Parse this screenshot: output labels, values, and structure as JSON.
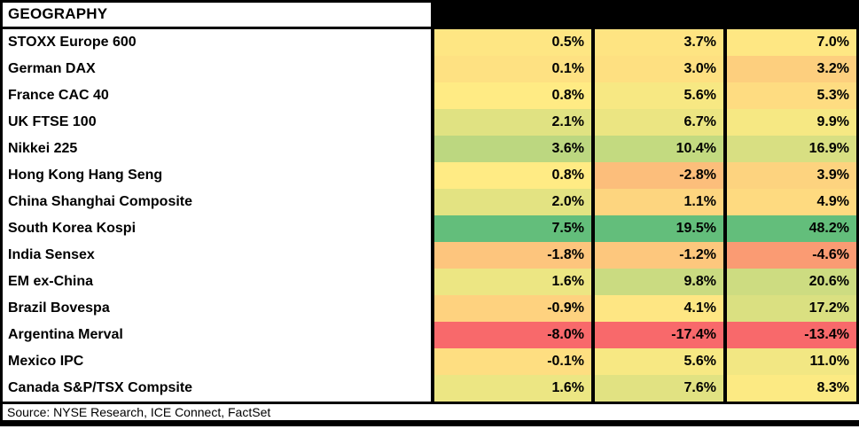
{
  "table": {
    "title": "GEOGRAPHY",
    "rows": [
      {
        "label": "STOXX Europe 600",
        "values": [
          "0.5%",
          "3.7%",
          "7.0%"
        ],
        "colors": [
          "#FEE683",
          "#FEE482",
          "#FEE783"
        ]
      },
      {
        "label": "German DAX",
        "values": [
          "0.1%",
          "3.0%",
          "3.2%"
        ],
        "colors": [
          "#FEE182",
          "#FEE081",
          "#FDCF7E"
        ]
      },
      {
        "label": "France CAC 40",
        "values": [
          "0.8%",
          "5.6%",
          "5.3%"
        ],
        "colors": [
          "#FFEB84",
          "#F7E883",
          "#FEDC81"
        ]
      },
      {
        "label": "UK FTSE 100",
        "values": [
          "2.1%",
          "6.7%",
          "9.9%"
        ],
        "colors": [
          "#E0E282",
          "#EBE582",
          "#F6E883"
        ]
      },
      {
        "label": "Nikkei 225",
        "values": [
          "3.6%",
          "10.4%",
          "16.9%"
        ],
        "colors": [
          "#BCD780",
          "#C3DA80",
          "#D8DF82"
        ]
      },
      {
        "label": "Hong Kong Hang Seng",
        "values": [
          "0.8%",
          "-2.8%",
          "3.9%"
        ],
        "colors": [
          "#FFEB84",
          "#FCBE7B",
          "#FDD37F"
        ]
      },
      {
        "label": "China Shanghai Composite",
        "values": [
          "2.0%",
          "1.1%",
          "4.9%"
        ],
        "colors": [
          "#E3E382",
          "#FDD57F",
          "#FEDA80"
        ]
      },
      {
        "label": "South Korea Kospi",
        "values": [
          "7.5%",
          "19.5%",
          "48.2%"
        ],
        "colors": [
          "#63BE7B",
          "#63BE7B",
          "#63BE7B"
        ]
      },
      {
        "label": "India Sensex",
        "values": [
          "-1.8%",
          "-1.2%",
          "-4.6%"
        ],
        "colors": [
          "#FDC57D",
          "#FDC77D",
          "#FA9B73"
        ]
      },
      {
        "label": "EM ex-China",
        "values": [
          "1.6%",
          "9.8%",
          "20.6%"
        ],
        "colors": [
          "#ECE683",
          "#CADB81",
          "#CDDC81"
        ]
      },
      {
        "label": "Brazil Bovespa",
        "values": [
          "-0.9%",
          "4.1%",
          "17.2%"
        ],
        "colors": [
          "#FED27F",
          "#FEE683",
          "#DAE081"
        ]
      },
      {
        "label": "Argentina Merval",
        "values": [
          "-8.0%",
          "-17.4%",
          "-13.4%"
        ],
        "colors": [
          "#F8696B",
          "#F8696B",
          "#F8696B"
        ]
      },
      {
        "label": "Mexico IPC",
        "values": [
          "-0.1%",
          "5.6%",
          "11.0%"
        ],
        "colors": [
          "#FEDE81",
          "#F7E883",
          "#F2E783"
        ]
      },
      {
        "label": "Canada S&P/TSX Compsite",
        "values": [
          "1.6%",
          "7.6%",
          "8.3%"
        ],
        "colors": [
          "#ECE683",
          "#E1E282",
          "#FCEA83"
        ]
      }
    ]
  },
  "footer": {
    "source": "Source: NYSE Research, ICE Connect, FactSet"
  },
  "colors": {
    "scale_min_red": "#F8696B",
    "scale_mid_yellow": "#FFEB84",
    "scale_max_green": "#63BE7B",
    "header_redaction": "#000000",
    "border": "#000000",
    "background": "#FFFFFF"
  },
  "chart_data": {
    "type": "heatmap",
    "title": "GEOGRAPHY",
    "rows": [
      "STOXX Europe 600",
      "German DAX",
      "France CAC 40",
      "UK FTSE 100",
      "Nikkei 225",
      "Hong Kong Hang Seng",
      "China Shanghai Composite",
      "South Korea Kospi",
      "India Sensex",
      "EM ex-China",
      "Brazil Bovespa",
      "Argentina Merval",
      "Mexico IPC",
      "Canada S&P/TSX Compsite"
    ],
    "columns": [
      "",
      "",
      ""
    ],
    "column_headers_redacted": true,
    "values_pct": [
      [
        0.5,
        3.7,
        7.0
      ],
      [
        0.1,
        3.0,
        3.2
      ],
      [
        0.8,
        5.6,
        5.3
      ],
      [
        2.1,
        6.7,
        9.9
      ],
      [
        3.6,
        10.4,
        16.9
      ],
      [
        0.8,
        -2.8,
        3.9
      ],
      [
        2.0,
        1.1,
        4.9
      ],
      [
        7.5,
        19.5,
        48.2
      ],
      [
        -1.8,
        -1.2,
        -4.6
      ],
      [
        1.6,
        9.8,
        20.6
      ],
      [
        -0.9,
        4.1,
        17.2
      ],
      [
        -8.0,
        -17.4,
        -13.4
      ],
      [
        -0.1,
        5.6,
        11.0
      ],
      [
        1.6,
        7.6,
        8.3
      ]
    ],
    "color_scale": {
      "min": "#F8696B",
      "mid": "#FFEB84",
      "max": "#63BE7B",
      "scaling": "per-column percentile"
    },
    "source_note": "Source: NYSE Research, ICE Connect, FactSet"
  }
}
